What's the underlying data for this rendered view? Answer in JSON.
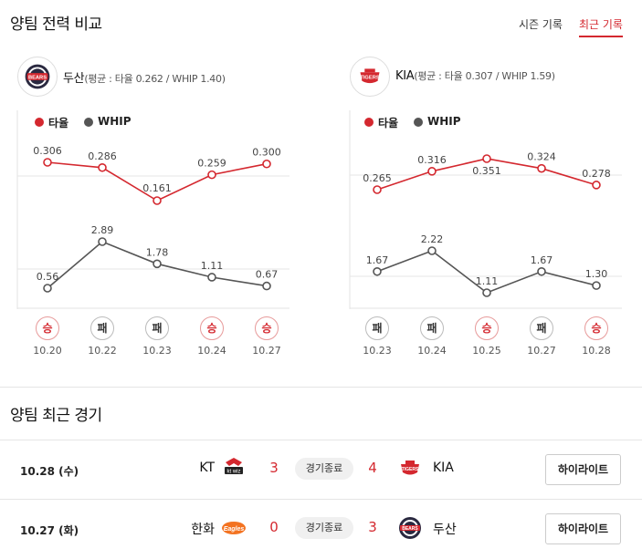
{
  "header": {
    "title": "양팀 전력 비교",
    "tabs": [
      {
        "label": "시즌 기록",
        "active": false
      },
      {
        "label": "최근 기록",
        "active": true
      }
    ]
  },
  "colors": {
    "accent": "#d4282f",
    "avg_series": "#d4282f",
    "whip_series": "#555555"
  },
  "teams": [
    {
      "name": "두산",
      "logo": "bears-logo",
      "summary": "(평균 : 타율 0.262 / WHIP 1.40)",
      "legend": {
        "avg": "타율",
        "whip": "WHIP"
      },
      "games": [
        {
          "date": "10.20",
          "result": "승",
          "win": true
        },
        {
          "date": "10.22",
          "result": "패",
          "win": false
        },
        {
          "date": "10.23",
          "result": "패",
          "win": false
        },
        {
          "date": "10.24",
          "result": "승",
          "win": true
        },
        {
          "date": "10.27",
          "result": "승",
          "win": true
        }
      ]
    },
    {
      "name": "KIA",
      "logo": "tigers-logo",
      "summary": "(평균 : 타율 0.307 / WHIP 1.59)",
      "legend": {
        "avg": "타율",
        "whip": "WHIP"
      },
      "games": [
        {
          "date": "10.23",
          "result": "패",
          "win": false
        },
        {
          "date": "10.24",
          "result": "패",
          "win": false
        },
        {
          "date": "10.25",
          "result": "승",
          "win": true
        },
        {
          "date": "10.27",
          "result": "패",
          "win": false
        },
        {
          "date": "10.28",
          "result": "승",
          "win": true
        }
      ]
    }
  ],
  "chart_data": [
    {
      "type": "line",
      "x": [
        "10.20",
        "10.22",
        "10.23",
        "10.24",
        "10.27"
      ],
      "series": [
        {
          "name": "타율",
          "values": [
            0.306,
            0.286,
            0.161,
            0.259,
            0.3
          ],
          "labels": [
            "0.306",
            "0.286",
            "0.161",
            "0.259",
            "0.300"
          ]
        },
        {
          "name": "WHIP",
          "values": [
            0.56,
            2.89,
            1.78,
            1.11,
            0.67
          ],
          "labels": [
            "0.56",
            "2.89",
            "1.78",
            "1.11",
            "0.67"
          ]
        }
      ]
    },
    {
      "type": "line",
      "x": [
        "10.23",
        "10.24",
        "10.25",
        "10.27",
        "10.28"
      ],
      "series": [
        {
          "name": "타율",
          "values": [
            0.265,
            0.316,
            0.351,
            0.324,
            0.278
          ],
          "labels": [
            "0.265",
            "0.316",
            "0.351",
            "0.324",
            "0.278"
          ]
        },
        {
          "name": "WHIP",
          "values": [
            1.67,
            2.22,
            1.11,
            1.67,
            1.3
          ],
          "labels": [
            "1.67",
            "2.22",
            "1.11",
            "1.67",
            "1.30"
          ]
        }
      ]
    }
  ],
  "recent": {
    "title": "양팀 최근 경기",
    "games": [
      {
        "date": "10.28 (수)",
        "home": "KT",
        "home_logo": "kt-wiz-logo",
        "home_score": "3",
        "status": "경기종료",
        "away": "KIA",
        "away_logo": "tigers-logo",
        "away_score": "4",
        "highlight": "하이라이트"
      },
      {
        "date": "10.27 (화)",
        "home": "한화",
        "home_logo": "eagles-logo",
        "home_score": "0",
        "status": "경기종료",
        "away": "두산",
        "away_logo": "bears-logo",
        "away_score": "3",
        "highlight": "하이라이트"
      }
    ]
  }
}
